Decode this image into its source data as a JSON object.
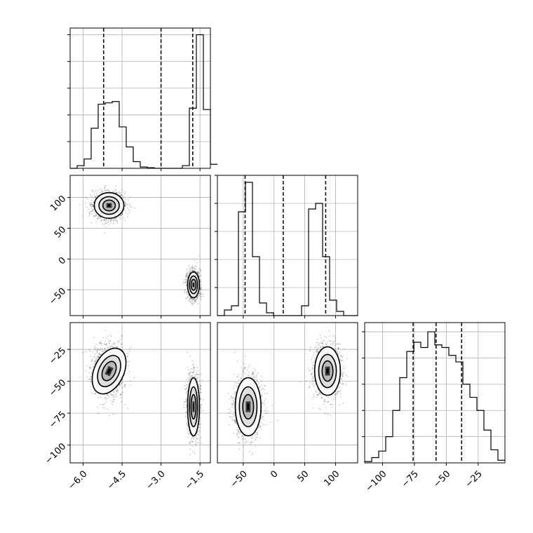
{
  "chart_data": {
    "type": "corner",
    "parameters": [
      "",
      "",
      ""
    ],
    "ranges": [
      [
        -6.5,
        -1.1
      ],
      [
        -92,
        136
      ],
      [
        -114,
        -4
      ]
    ],
    "ticks": [
      {
        "values": [
          -6.0,
          -4.5,
          -3.0,
          -1.5
        ],
        "labels": [
          "−6.0",
          "−4.5",
          "−3.0",
          "−1.5"
        ]
      },
      {
        "values": [
          -50,
          0,
          50,
          100
        ],
        "labels": [
          "−50",
          "0",
          "50",
          "100"
        ]
      },
      {
        "values": [
          -100,
          -75,
          -50,
          -25
        ],
        "labels": [
          "−100",
          "−75",
          "−50",
          "−25"
        ]
      }
    ],
    "quantiles": [
      [
        -5.21,
        -3.0,
        -1.78
      ],
      [
        -47,
        15,
        84
      ],
      [
        -76,
        -58,
        -38
      ]
    ],
    "histograms": [
      {
        "edges_start": -6.5,
        "bin_width": 0.27,
        "counts": [
          0,
          0.02,
          0.07,
          0.3,
          0.48,
          0.49,
          0.5,
          0.31,
          0.16,
          0.05,
          0.01,
          0.005,
          0,
          0,
          0,
          0,
          0.02,
          0.45,
          1.0,
          0.44,
          0.03
        ],
        "max_count": 1.05
      },
      {
        "edges_start": -92,
        "bin_width": 11.4,
        "counts": [
          0,
          0.04,
          0.07,
          0.74,
          0.95,
          0.42,
          0.09,
          0.02,
          0,
          0,
          0,
          0,
          0.07,
          0.76,
          0.8,
          0.42,
          0.11,
          0.03,
          0,
          0
        ],
        "max_count": 1.0
      },
      {
        "edges_start": -114,
        "bin_width": 5.5,
        "counts": [
          0.01,
          0.04,
          0.09,
          0.2,
          0.4,
          0.65,
          0.85,
          0.92,
          0.88,
          1.0,
          0.9,
          0.88,
          0.82,
          0.77,
          0.6,
          0.5,
          0.4,
          0.25,
          0.1,
          0.02
        ],
        "max_count": 1.07
      }
    ],
    "clusters": [
      {
        "mean": [
          -5.0,
          87,
          -42
        ],
        "std": [
          0.3,
          11,
          10
        ],
        "weight": 0.5
      },
      {
        "mean": [
          -1.75,
          -42,
          -70
        ],
        "std": [
          0.12,
          11,
          12
        ],
        "weight": 0.5
      }
    ],
    "grid": true
  }
}
